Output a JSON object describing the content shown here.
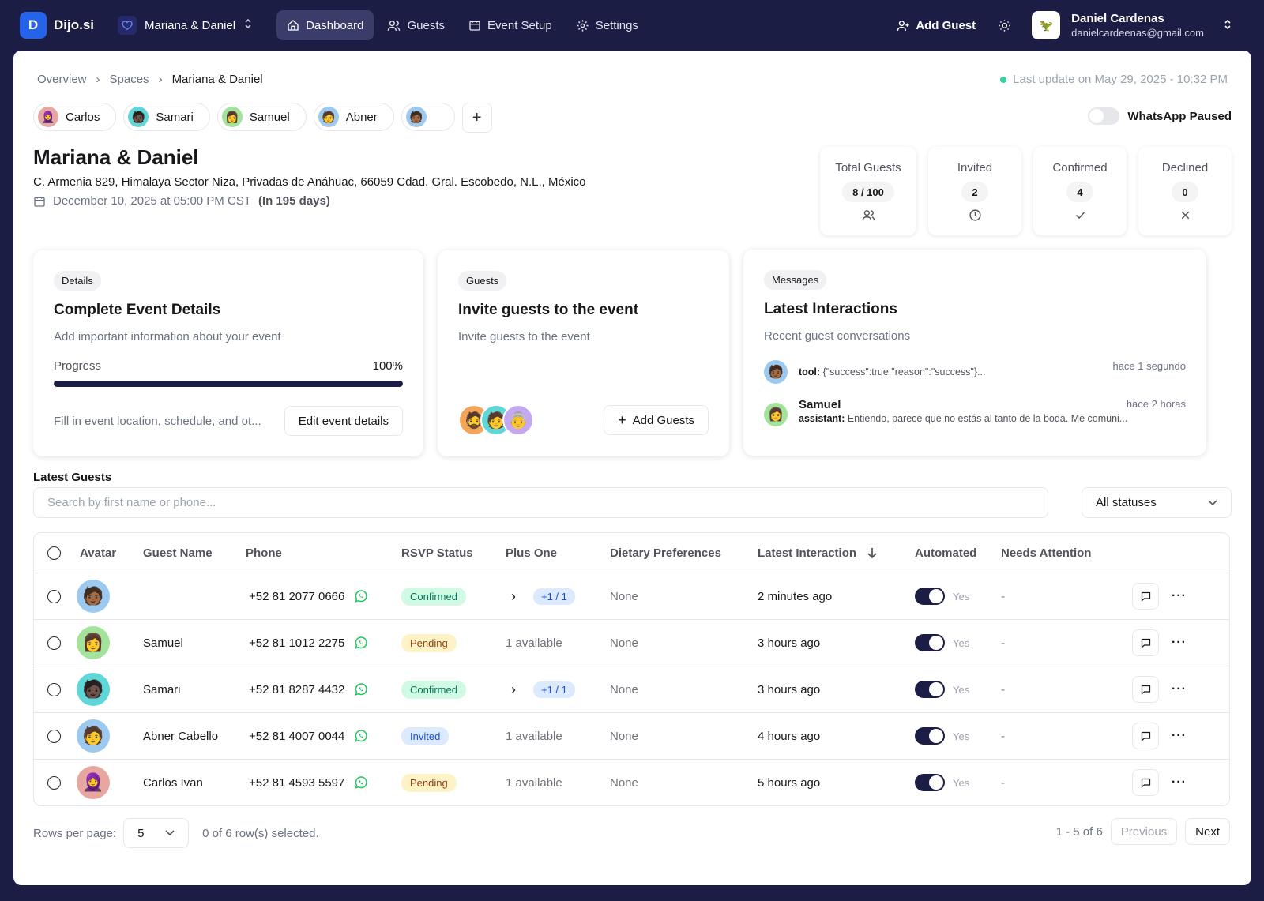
{
  "topbar": {
    "logo_letter": "D",
    "brand": "Dijo.si",
    "space": "Mariana & Daniel",
    "nav": [
      {
        "label": "Dashboard",
        "icon": "home-icon",
        "active": true
      },
      {
        "label": "Guests",
        "icon": "users-icon"
      },
      {
        "label": "Event Setup",
        "icon": "calendar-icon"
      },
      {
        "label": "Settings",
        "icon": "gear-icon"
      }
    ],
    "add_guest": "Add Guest",
    "user_name": "Daniel Cardenas",
    "user_email": "danielcardeenas@gmail.com"
  },
  "breadcrumb": [
    "Overview",
    "Spaces",
    "Mariana & Daniel"
  ],
  "last_update": "Last update on May 29, 2025 - 10:32 PM",
  "chips": [
    {
      "label": "Carlos",
      "color": "#e7a7a0",
      "emoji": "🧕"
    },
    {
      "label": "Samari",
      "color": "#5fd6d8",
      "emoji": "🧑🏿"
    },
    {
      "label": "Samuel",
      "color": "#a3e39b",
      "emoji": "👩"
    },
    {
      "label": "Abner",
      "color": "#9cc9ef",
      "emoji": "🧑"
    },
    {
      "label": "",
      "color": "#9cc9ef",
      "emoji": "🧑🏾"
    }
  ],
  "whatsapp": "WhatsApp Paused",
  "event": {
    "title": "Mariana & Daniel",
    "address": "C. Armenia 829, Himalaya Sector Niza, Privadas de Anáhuac, 66059 Cdad. Gral. Escobedo, N.L., México",
    "date": "December 10, 2025 at 05:00 PM CST",
    "in_days": "(In 195 days)"
  },
  "stats": [
    {
      "label": "Total Guests",
      "value": "8 / 100",
      "icon": "users-icon"
    },
    {
      "label": "Invited",
      "value": "2",
      "icon": "clock-icon"
    },
    {
      "label": "Confirmed",
      "value": "4",
      "icon": "check-icon"
    },
    {
      "label": "Declined",
      "value": "0",
      "icon": "x-icon"
    }
  ],
  "details_card": {
    "tag": "Details",
    "title": "Complete Event Details",
    "subtitle": "Add important information about your event",
    "progress_label": "Progress",
    "progress_text": "100%",
    "progress": 1.0,
    "footer_text": "Fill in event location, schedule, and ot...",
    "button": "Edit event details"
  },
  "guests_card": {
    "tag": "Guests",
    "title": "Invite guests to the event",
    "subtitle": "Invite guests to the event",
    "button": "Add Guests"
  },
  "messages_card": {
    "tag": "Messages",
    "title": "Latest Interactions",
    "subtitle": "Recent guest conversations",
    "items": [
      {
        "name": "",
        "role": "tool:",
        "text": "{\"success\":true,\"reason\":\"success\"}...",
        "time": "hace 1 segundo",
        "color": "#9cc9ef",
        "emoji": "🧑🏾"
      },
      {
        "name": "Samuel",
        "role": "assistant:",
        "text": "Entiendo, parece que no estás al tanto de la boda. Me comuni...",
        "time": "hace 2 horas",
        "color": "#a3e39b",
        "emoji": "👩"
      }
    ]
  },
  "latest_guests": {
    "title": "Latest Guests",
    "search_placeholder": "Search by first name or phone...",
    "status_filter": "All statuses",
    "columns": [
      "Avatar",
      "Guest Name",
      "Phone",
      "RSVP Status",
      "Plus One",
      "Dietary Preferences",
      "Latest Interaction",
      "Automated",
      "Needs Attention"
    ],
    "rows": [
      {
        "name": "",
        "phone": "+52 81 2077 0666",
        "status": "Confirmed",
        "status_key": "confirmed",
        "plus_one": "+1 / 1",
        "has_plus": true,
        "diet": "None",
        "interaction": "2 minutes ago",
        "automated": "Yes",
        "attention": "-",
        "color": "#9cc9ef",
        "emoji": "🧑🏾"
      },
      {
        "name": "Samuel",
        "phone": "+52 81 1012 2275",
        "status": "Pending",
        "status_key": "pending",
        "plus_one": "1 available",
        "has_plus": false,
        "diet": "None",
        "interaction": "3 hours ago",
        "automated": "Yes",
        "attention": "-",
        "color": "#a3e39b",
        "emoji": "👩"
      },
      {
        "name": "Samari",
        "phone": "+52 81 8287 4432",
        "status": "Confirmed",
        "status_key": "confirmed",
        "plus_one": "+1 / 1",
        "has_plus": true,
        "diet": "None",
        "interaction": "3 hours ago",
        "automated": "Yes",
        "attention": "-",
        "color": "#5fd6d8",
        "emoji": "🧑🏿"
      },
      {
        "name": "Abner Cabello",
        "phone": "+52 81 4007 0044",
        "status": "Invited",
        "status_key": "invited",
        "plus_one": "1 available",
        "has_plus": false,
        "diet": "None",
        "interaction": "4 hours ago",
        "automated": "Yes",
        "attention": "-",
        "color": "#9cc9ef",
        "emoji": "🧑"
      },
      {
        "name": "Carlos Ivan",
        "phone": "+52 81 4593 5597",
        "status": "Pending",
        "status_key": "pending",
        "plus_one": "1 available",
        "has_plus": false,
        "diet": "None",
        "interaction": "5 hours ago",
        "automated": "Yes",
        "attention": "-",
        "color": "#e7a7a0",
        "emoji": "🧕"
      }
    ]
  },
  "pager": {
    "rows_label": "Rows per page:",
    "rows_value": "5",
    "selected": "0 of 6 row(s) selected.",
    "range": "1 - 5 of 6",
    "previous": "Previous",
    "next": "Next"
  }
}
